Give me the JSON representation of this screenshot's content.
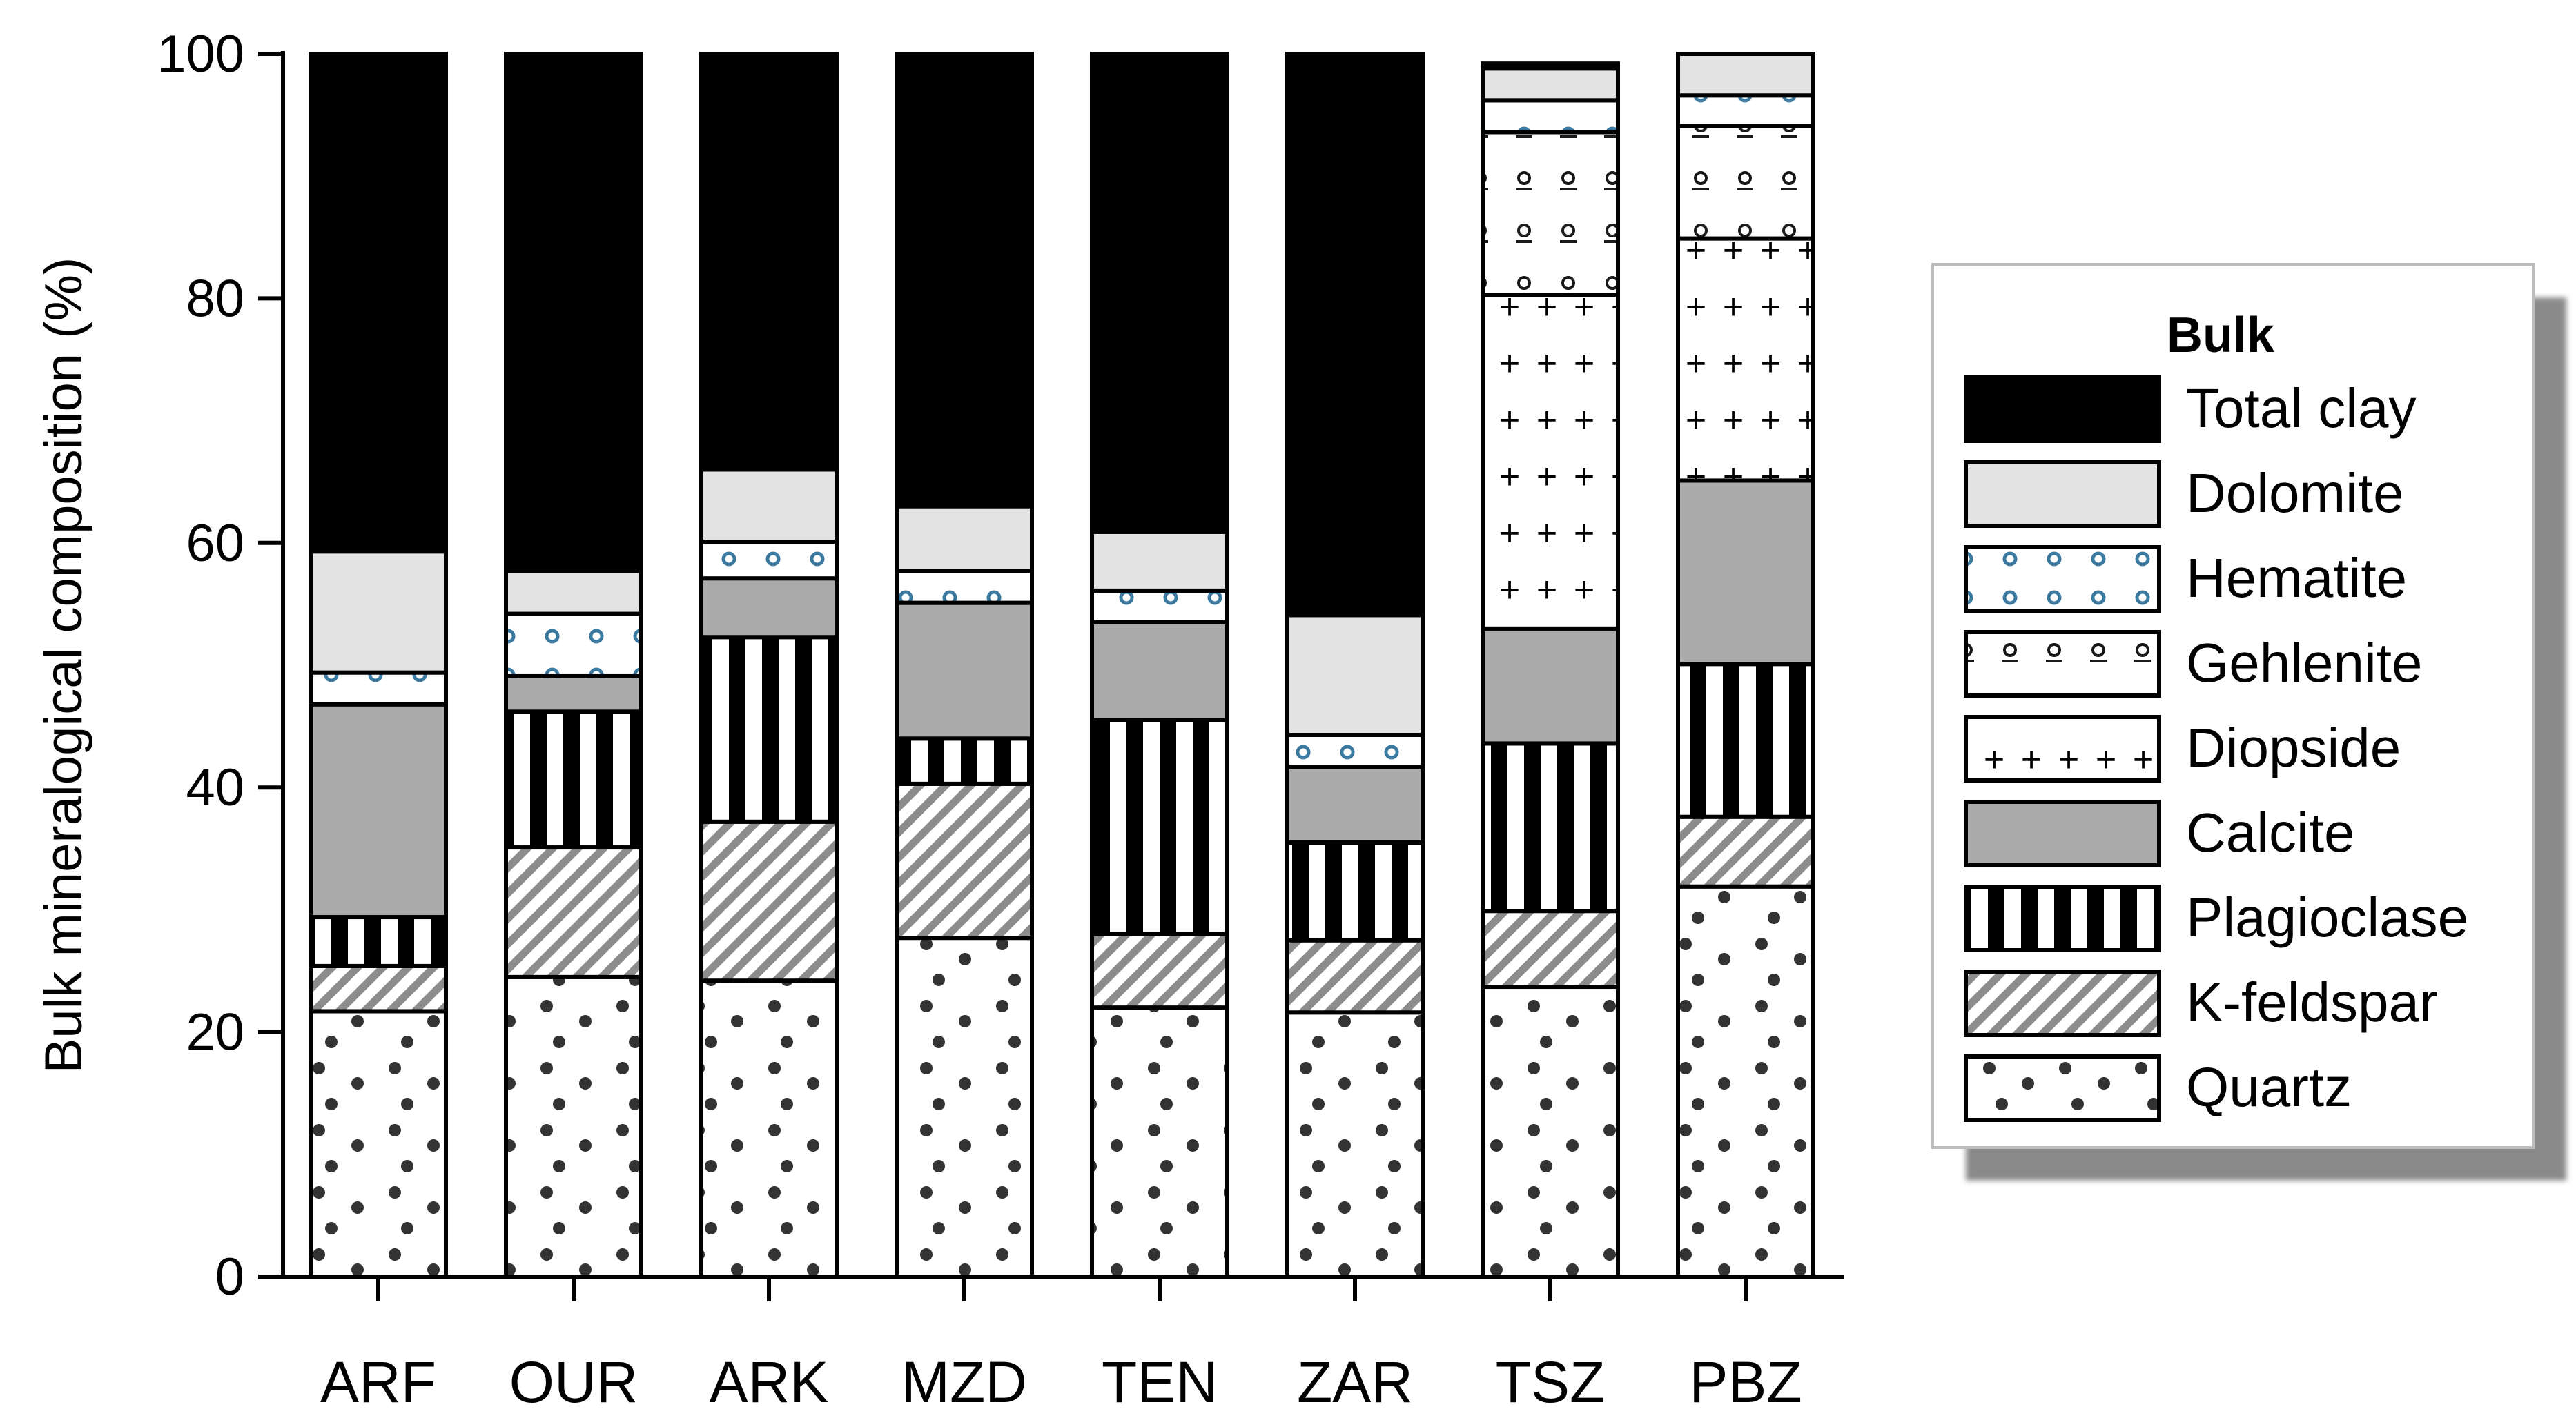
{
  "chart_data": {
    "type": "bar",
    "stacked": true,
    "ylabel": "Bulk mineralogical composition (%)",
    "xlabel": "",
    "ylim": [
      0,
      100
    ],
    "yticks": [
      0,
      20,
      40,
      60,
      80,
      100
    ],
    "categories": [
      "ARF",
      "OUR",
      "ARK",
      "MZD",
      "TEN",
      "ZAR",
      "TSZ",
      "PBZ"
    ],
    "legend": {
      "title": "Bulk",
      "position": "right",
      "order": [
        "Total clay",
        "Dolomite",
        "Hematite",
        "Gehlenite",
        "Diopside",
        "Calcite",
        "Plagioclase",
        "K-feldspar",
        "Quartz"
      ]
    },
    "series": [
      {
        "name": "Quartz",
        "pattern": "dots",
        "values": [
          21.7,
          24.5,
          24.2,
          27.7,
          22.0,
          21.6,
          23.7,
          31.9
        ]
      },
      {
        "name": "K-feldspar",
        "pattern": "hatch",
        "values": [
          3.7,
          10.6,
          13.0,
          12.6,
          6.0,
          5.9,
          6.2,
          5.7
        ]
      },
      {
        "name": "Plagioclase",
        "pattern": "stripes",
        "values": [
          4.0,
          11.1,
          15.1,
          3.7,
          17.5,
          8.0,
          13.7,
          12.5
        ]
      },
      {
        "name": "Calcite",
        "pattern": "gray",
        "values": [
          17.4,
          2.9,
          4.8,
          11.1,
          8.0,
          6.2,
          9.4,
          15.0
        ]
      },
      {
        "name": "Diopside",
        "pattern": "plus",
        "values": [
          0,
          0,
          0,
          0,
          0,
          0,
          27.3,
          19.8
        ]
      },
      {
        "name": "Gehlenite",
        "pattern": "gehl",
        "values": [
          0,
          0,
          0,
          0,
          0,
          0,
          13.3,
          9.2
        ]
      },
      {
        "name": "Hematite",
        "pattern": "hem",
        "values": [
          2.6,
          5.1,
          3.0,
          2.6,
          2.6,
          2.6,
          2.6,
          2.5
        ]
      },
      {
        "name": "Dolomite",
        "pattern": "light",
        "values": [
          9.9,
          3.5,
          5.9,
          5.3,
          4.8,
          9.8,
          2.6,
          3.4
        ]
      },
      {
        "name": "Total clay",
        "pattern": "black",
        "values": [
          40.7,
          42.3,
          34.0,
          37.0,
          39.1,
          45.9,
          0.4,
          0
        ]
      }
    ]
  }
}
